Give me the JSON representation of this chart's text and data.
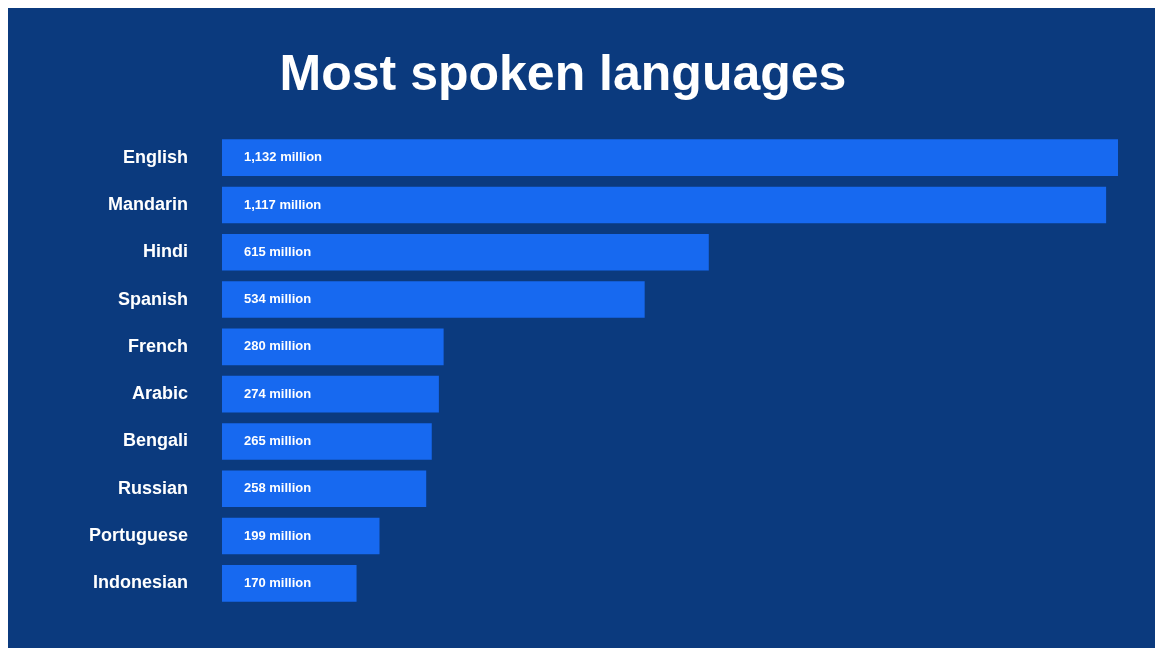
{
  "chart_data": {
    "type": "bar",
    "orientation": "horizontal",
    "title": "Most spoken languages",
    "categories": [
      "English",
      "Mandarin",
      "Hindi",
      "Spanish",
      "French",
      "Arabic",
      "Bengali",
      "Russian",
      "Portuguese",
      "Indonesian"
    ],
    "values": [
      1132,
      1117,
      615,
      534,
      280,
      274,
      265,
      258,
      199,
      170
    ],
    "value_labels": [
      "1,132 million",
      "1,117 million",
      "615 million",
      "534 million",
      "280 million",
      "274 million",
      "265 million",
      "258 million",
      "199 million",
      "170 million"
    ],
    "color": "#1769f0",
    "legend": false,
    "tick_labels": "y"
  }
}
